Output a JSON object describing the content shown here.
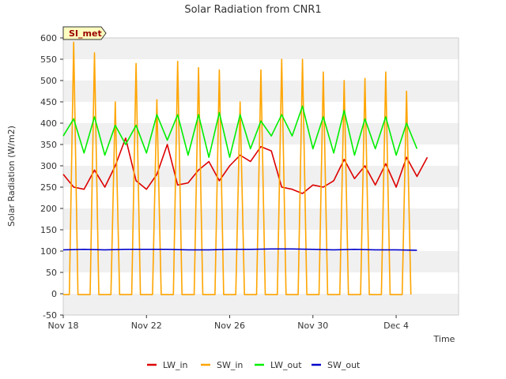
{
  "chart_data": {
    "type": "line",
    "title": "Solar Radiation from CNR1",
    "xlabel": "Time",
    "ylabel": "Solar Radiation (W/m2)",
    "ylim": [
      -50,
      600
    ],
    "yticks": [
      -50,
      0,
      50,
      100,
      150,
      200,
      250,
      300,
      350,
      400,
      450,
      500,
      550,
      600
    ],
    "xlim": [
      "2018-11-18",
      "2018-12-07"
    ],
    "xticks": [
      {
        "date": "2018-11-18",
        "label": "Nov 18"
      },
      {
        "date": "2018-11-22",
        "label": "Nov 22"
      },
      {
        "date": "2018-11-26",
        "label": "Nov 26"
      },
      {
        "date": "2018-11-30",
        "label": "Nov 30"
      },
      {
        "date": "2018-12-04",
        "label": "Dec 4"
      }
    ],
    "station_badge": "SI_met",
    "grid": "horizontal bands",
    "legend_position": "bottom-center",
    "series": [
      {
        "name": "LW_in",
        "color": "#dd0000",
        "points": [
          [
            "2018-11-18",
            280
          ],
          [
            "2018-11-18T12:00",
            250
          ],
          [
            "2018-11-19",
            245
          ],
          [
            "2018-11-19T12:00",
            290
          ],
          [
            "2018-11-20",
            250
          ],
          [
            "2018-11-20T12:00",
            300
          ],
          [
            "2018-11-21",
            365
          ],
          [
            "2018-11-21T12:00",
            265
          ],
          [
            "2018-11-22",
            245
          ],
          [
            "2018-11-22T12:00",
            280
          ],
          [
            "2018-11-23",
            350
          ],
          [
            "2018-11-23T12:00",
            255
          ],
          [
            "2018-11-24",
            260
          ],
          [
            "2018-11-24T12:00",
            290
          ],
          [
            "2018-11-25",
            310
          ],
          [
            "2018-11-25T12:00",
            265
          ],
          [
            "2018-11-26",
            300
          ],
          [
            "2018-11-26T12:00",
            325
          ],
          [
            "2018-11-27",
            310
          ],
          [
            "2018-11-27T12:00",
            345
          ],
          [
            "2018-11-28",
            335
          ],
          [
            "2018-11-28T12:00",
            250
          ],
          [
            "2018-11-29",
            245
          ],
          [
            "2018-11-29T12:00",
            235
          ],
          [
            "2018-11-30",
            255
          ],
          [
            "2018-11-30T12:00",
            250
          ],
          [
            "2018-12-01",
            265
          ],
          [
            "2018-12-01T12:00",
            315
          ],
          [
            "2018-12-02",
            270
          ],
          [
            "2018-12-02T12:00",
            300
          ],
          [
            "2018-12-03",
            255
          ],
          [
            "2018-12-03T12:00",
            305
          ],
          [
            "2018-12-04",
            250
          ],
          [
            "2018-12-04T12:00",
            320
          ],
          [
            "2018-12-05",
            275
          ],
          [
            "2018-12-05T12:00",
            320
          ]
        ]
      },
      {
        "name": "SW_in",
        "color": "#ffa500",
        "day_peaks": [
          [
            "2018-11-18",
            590
          ],
          [
            "2018-11-19",
            565
          ],
          [
            "2018-11-20",
            450
          ],
          [
            "2018-11-21",
            540
          ],
          [
            "2018-11-22",
            455
          ],
          [
            "2018-11-23",
            545
          ],
          [
            "2018-11-24",
            530
          ],
          [
            "2018-11-25",
            525
          ],
          [
            "2018-11-26",
            450
          ],
          [
            "2018-11-27",
            525
          ],
          [
            "2018-11-28",
            550
          ],
          [
            "2018-11-29",
            550
          ],
          [
            "2018-11-30",
            520
          ],
          [
            "2018-12-01",
            500
          ],
          [
            "2018-12-02",
            505
          ],
          [
            "2018-12-03",
            520
          ],
          [
            "2018-12-04",
            475
          ]
        ],
        "night_value": -2
      },
      {
        "name": "LW_out",
        "color": "#00ee00",
        "points": [
          [
            "2018-11-18",
            370
          ],
          [
            "2018-11-18T12:00",
            410
          ],
          [
            "2018-11-19",
            330
          ],
          [
            "2018-11-19T12:00",
            415
          ],
          [
            "2018-11-20",
            325
          ],
          [
            "2018-11-20T12:00",
            395
          ],
          [
            "2018-11-21",
            350
          ],
          [
            "2018-11-21T12:00",
            395
          ],
          [
            "2018-11-22",
            330
          ],
          [
            "2018-11-22T12:00",
            420
          ],
          [
            "2018-11-23",
            360
          ],
          [
            "2018-11-23T12:00",
            420
          ],
          [
            "2018-11-24",
            325
          ],
          [
            "2018-11-24T12:00",
            420
          ],
          [
            "2018-11-25",
            320
          ],
          [
            "2018-11-25T12:00",
            425
          ],
          [
            "2018-11-26",
            320
          ],
          [
            "2018-11-26T12:00",
            420
          ],
          [
            "2018-11-27",
            340
          ],
          [
            "2018-11-27T12:00",
            405
          ],
          [
            "2018-11-28",
            370
          ],
          [
            "2018-11-28T12:00",
            420
          ],
          [
            "2018-11-29",
            370
          ],
          [
            "2018-11-29T12:00",
            440
          ],
          [
            "2018-11-30",
            340
          ],
          [
            "2018-11-30T12:00",
            415
          ],
          [
            "2018-12-01",
            330
          ],
          [
            "2018-12-01T12:00",
            430
          ],
          [
            "2018-12-02",
            325
          ],
          [
            "2018-12-02T12:00",
            410
          ],
          [
            "2018-12-03",
            340
          ],
          [
            "2018-12-03T12:00",
            415
          ],
          [
            "2018-12-04",
            325
          ],
          [
            "2018-12-04T12:00",
            400
          ],
          [
            "2018-12-05",
            340
          ]
        ]
      },
      {
        "name": "SW_out",
        "color": "#0000cc",
        "points": [
          [
            "2018-11-18",
            103
          ],
          [
            "2018-11-19",
            104
          ],
          [
            "2018-11-20",
            103
          ],
          [
            "2018-11-21",
            104
          ],
          [
            "2018-11-22",
            104
          ],
          [
            "2018-11-23",
            104
          ],
          [
            "2018-11-24",
            103
          ],
          [
            "2018-11-25",
            103
          ],
          [
            "2018-11-26",
            104
          ],
          [
            "2018-11-27",
            104
          ],
          [
            "2018-11-28",
            105
          ],
          [
            "2018-11-29",
            105
          ],
          [
            "2018-11-30",
            104
          ],
          [
            "2018-12-01",
            103
          ],
          [
            "2018-12-02",
            104
          ],
          [
            "2018-12-03",
            103
          ],
          [
            "2018-12-04",
            103
          ],
          [
            "2018-12-05",
            102
          ]
        ]
      }
    ]
  }
}
